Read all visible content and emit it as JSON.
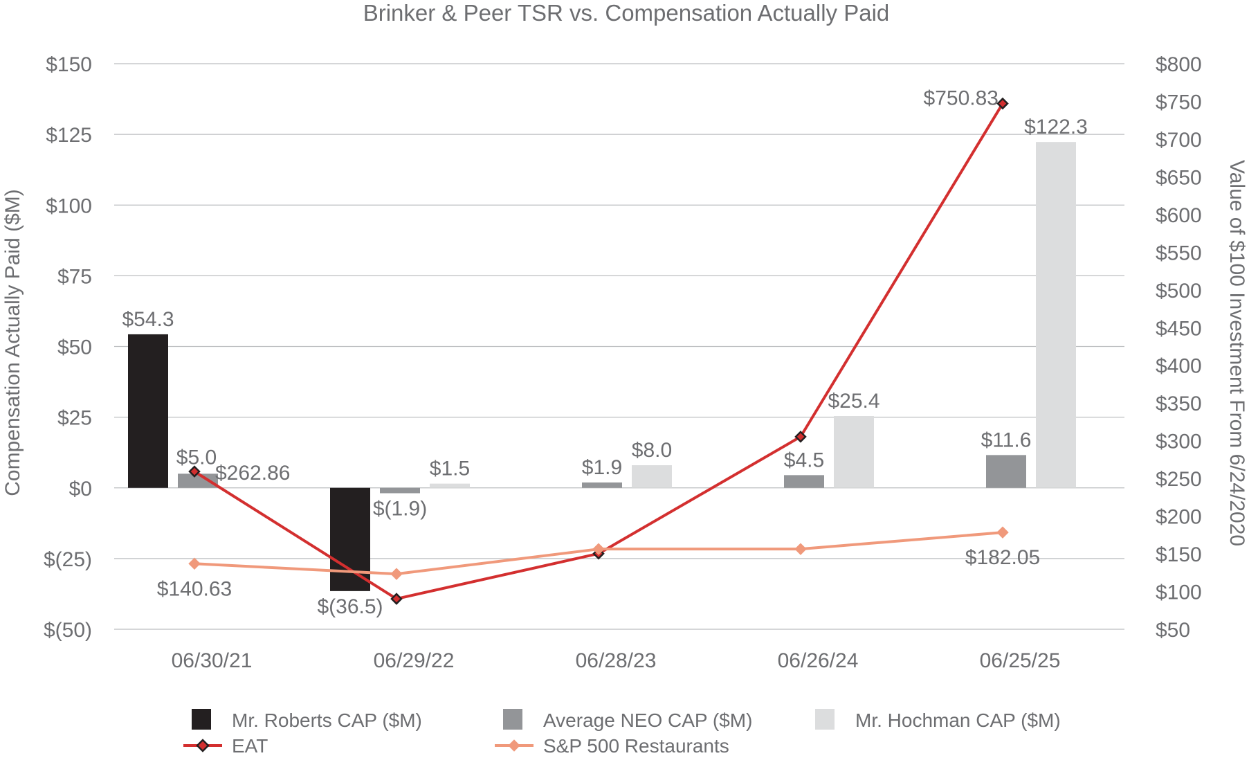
{
  "chart_data": {
    "type": "bar",
    "title": "Brinker & Peer TSR vs. Compensation Actually Paid",
    "ylabel": "Compensation Actually Paid ($M)",
    "y2label": "Value of $100 Investment From 6/24/2020",
    "categories": [
      "06/30/21",
      "06/29/22",
      "06/28/23",
      "06/26/24",
      "06/25/25"
    ],
    "ylim": [
      -50,
      150
    ],
    "y2lim": [
      50,
      800
    ],
    "yticks": [
      150,
      125,
      100,
      75,
      50,
      25,
      0,
      -25,
      -50
    ],
    "ytick_labels": [
      "$150",
      "$125",
      "$100",
      "$75",
      "$50",
      "$25",
      "$0",
      "$(25)",
      "$(50)"
    ],
    "y2ticks": [
      800,
      750,
      700,
      650,
      600,
      550,
      500,
      450,
      400,
      350,
      300,
      250,
      200,
      150,
      100,
      50
    ],
    "y2tick_labels": [
      "$800",
      "$750",
      "$700",
      "$650",
      "$600",
      "$550",
      "$500",
      "$450",
      "$400",
      "$350",
      "$300",
      "$250",
      "$200",
      "$150",
      "$100",
      "$50"
    ],
    "grid": true,
    "legend_position": "bottom",
    "bar_series": [
      {
        "name": "Mr. Roberts CAP ($M)",
        "color": "#231f20",
        "values": [
          54.3,
          -36.5,
          null,
          null,
          null
        ],
        "labels": [
          "$54.3",
          "$(36.5)",
          null,
          null,
          null
        ]
      },
      {
        "name": "Average NEO CAP ($M)",
        "color": "#939598",
        "values": [
          5.0,
          -1.9,
          1.9,
          4.5,
          11.6
        ],
        "labels": [
          "$5.0",
          "$(1.9)",
          "$1.9",
          "$4.5",
          "$11.6"
        ]
      },
      {
        "name": "Mr. Hochman CAP ($M)",
        "color": "#dcddde",
        "values": [
          null,
          1.5,
          8.0,
          25.4,
          122.3
        ],
        "labels": [
          null,
          "$1.5",
          "$8.0",
          "$25.4",
          "$122.3"
        ]
      }
    ],
    "line_series": [
      {
        "name": "EAT",
        "color": "#d32f2f",
        "axis": "right",
        "values": [
          262.86,
          94,
          154,
          309,
          750.83
        ],
        "labels": [
          "$262.86",
          null,
          null,
          null,
          "$750.83"
        ]
      },
      {
        "name": "S&P 500 Restaurants",
        "color": "#f0997b",
        "axis": "right",
        "values": [
          140.63,
          127,
          160,
          160,
          182.05
        ],
        "labels": [
          "$140.63",
          null,
          null,
          null,
          "$182.05"
        ]
      }
    ]
  }
}
